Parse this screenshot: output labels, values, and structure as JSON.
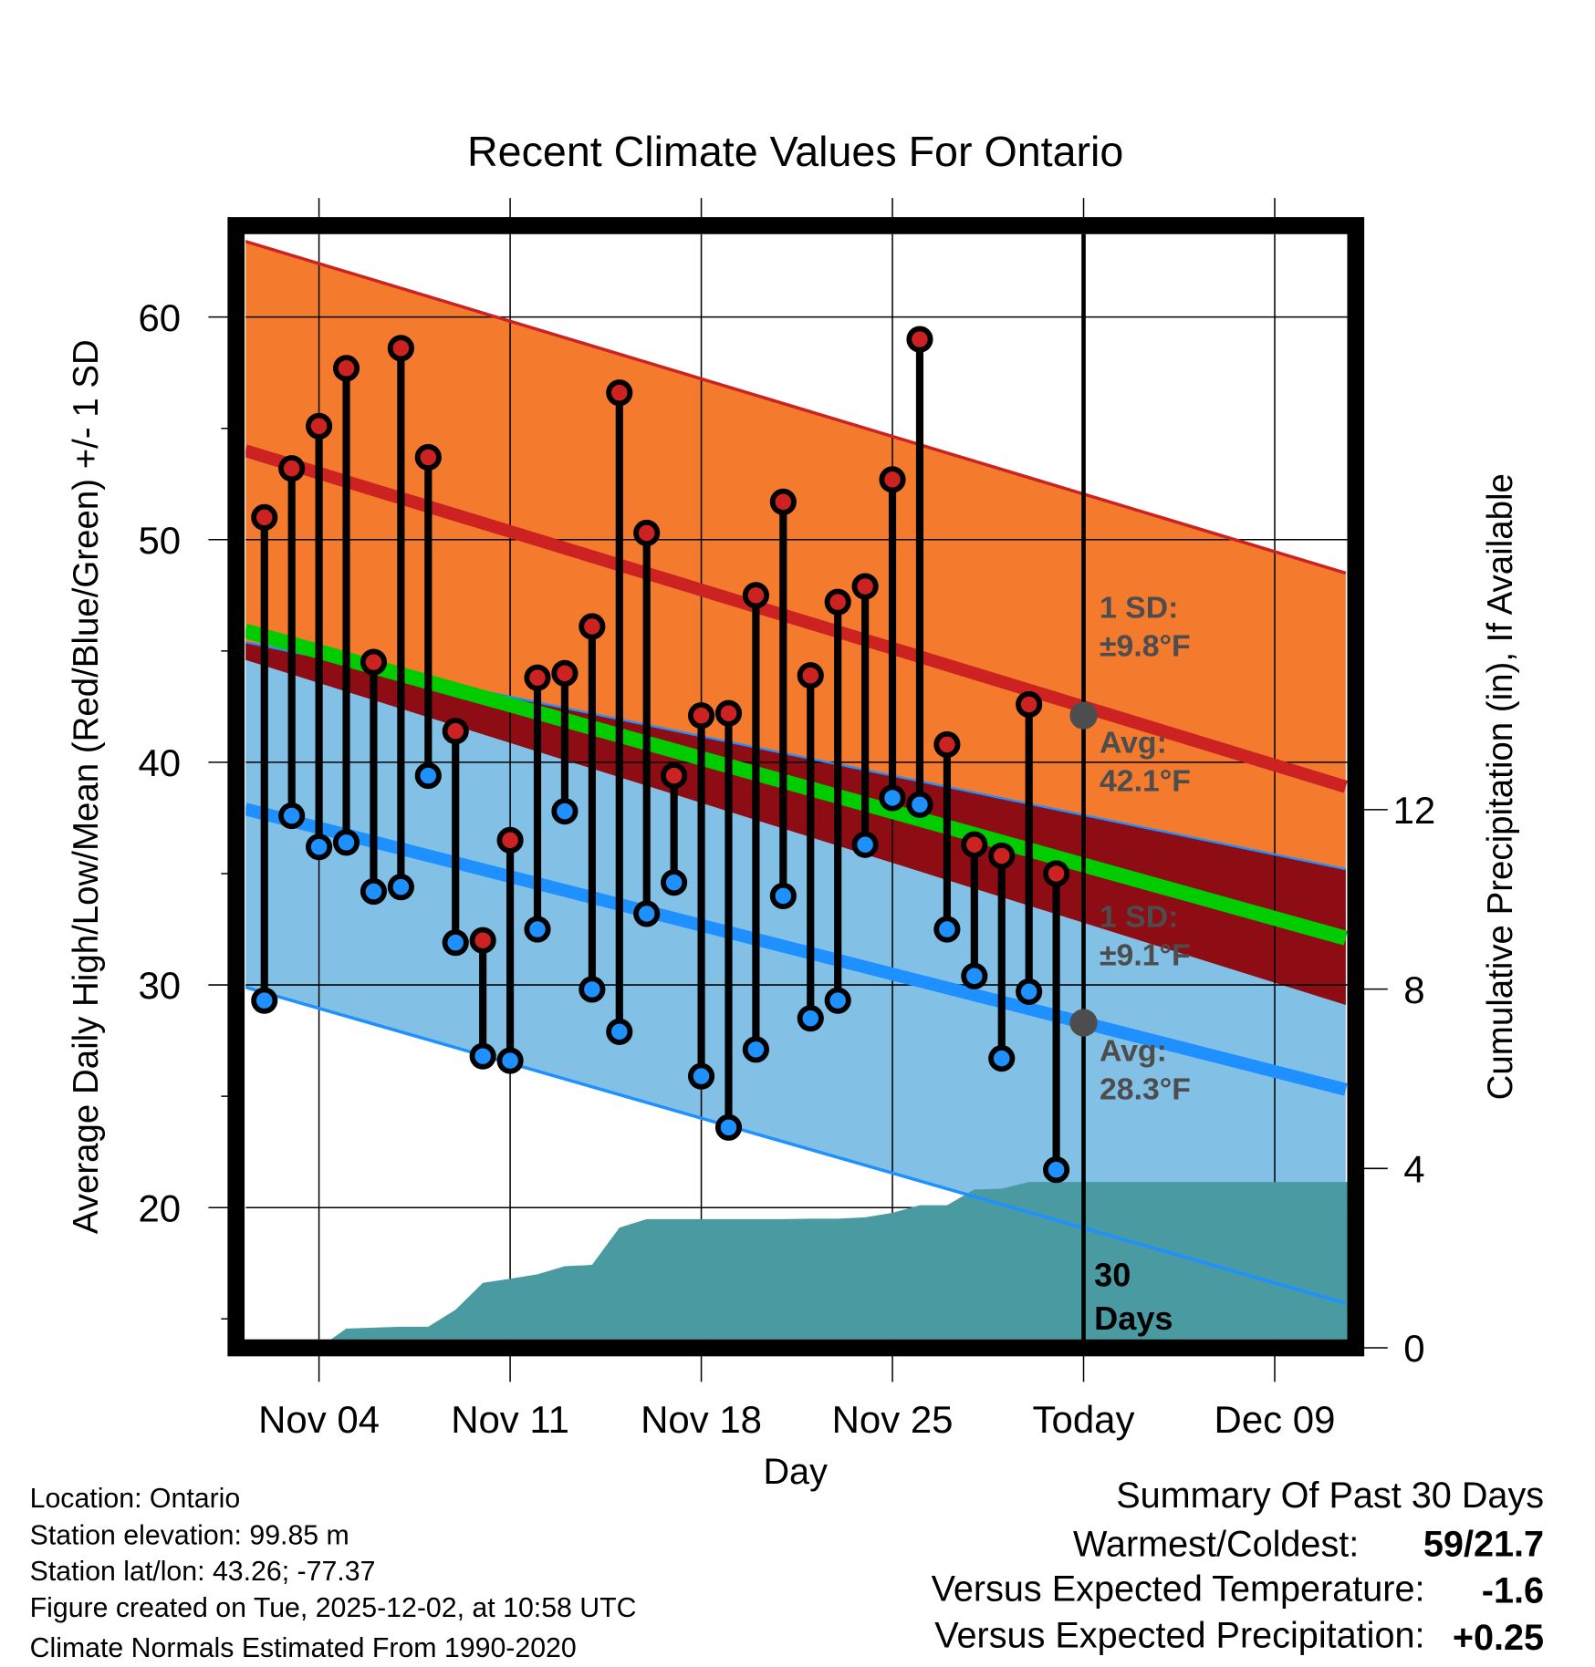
{
  "chart_data": {
    "type": "line",
    "title": "Recent Climate Values For Ontario",
    "xlabel": "Day",
    "ylabel": "Average Daily High/Low/Mean (Red/Blue/Green) +/- 1 SD",
    "y2label": "Cumulative Precipitation (in), If Available",
    "ylim": [
      14.1,
      63.7
    ],
    "y_ticks": [
      "20",
      "30",
      "40",
      "50",
      "60"
    ],
    "y_tick_values": [
      20,
      30,
      40,
      50,
      60
    ],
    "y_minor_ticks": [
      15,
      25,
      35,
      45,
      55
    ],
    "y2_ticks": [
      "0",
      "4",
      "8",
      "12"
    ],
    "y2_tick_values": [
      0,
      4,
      8,
      12
    ],
    "x_day_range": [
      -2.7,
      37.6
    ],
    "x_ticks": [
      {
        "label": "Nov 04",
        "day": 0
      },
      {
        "label": "Nov 11",
        "day": 7
      },
      {
        "label": "Nov 18",
        "day": 14
      },
      {
        "label": "Nov 25",
        "day": 21
      },
      {
        "label": "Today",
        "day": 28
      },
      {
        "label": "Dec 09",
        "day": 35
      }
    ],
    "today_day": 28,
    "observations": {
      "dates": [
        "Nov 02",
        "Nov 03",
        "Nov 04",
        "Nov 05",
        "Nov 06",
        "Nov 07",
        "Nov 08",
        "Nov 09",
        "Nov 10",
        "Nov 11",
        "Nov 12",
        "Nov 13",
        "Nov 14",
        "Nov 15",
        "Nov 16",
        "Nov 17",
        "Nov 18",
        "Nov 19",
        "Nov 20",
        "Nov 21",
        "Nov 22",
        "Nov 23",
        "Nov 24",
        "Nov 25",
        "Nov 26",
        "Nov 27",
        "Nov 28",
        "Nov 29",
        "Nov 30",
        "Dec 01"
      ],
      "start_day": -2,
      "high": [
        51.0,
        53.2,
        55.1,
        57.7,
        44.5,
        58.6,
        53.7,
        41.4,
        32.0,
        36.5,
        43.8,
        44.0,
        46.1,
        56.6,
        50.3,
        39.4,
        42.1,
        42.2,
        47.5,
        51.7,
        43.9,
        47.2,
        47.9,
        52.7,
        59.0,
        40.8,
        36.3,
        35.8,
        42.6,
        35.0
      ],
      "low": [
        29.3,
        37.6,
        36.2,
        36.4,
        34.2,
        34.4,
        39.4,
        31.9,
        26.8,
        26.6,
        32.5,
        37.8,
        29.8,
        27.9,
        33.2,
        34.6,
        25.9,
        23.6,
        27.1,
        34.0,
        28.5,
        29.3,
        36.3,
        38.4,
        38.1,
        32.5,
        30.4,
        26.7,
        29.7,
        21.7
      ]
    },
    "normals": {
      "high_plus_1sd": [
        63.4,
        48.5
      ],
      "high_avg": [
        54.0,
        38.9
      ],
      "high_minus_1sd": [
        44.6,
        29.1
      ],
      "mean_avg": [
        45.9,
        32.1
      ],
      "low_plus_1sd": [
        45.4,
        35.2
      ],
      "low_avg": [
        37.9,
        25.3
      ],
      "low_minus_1sd": [
        29.9,
        15.7
      ]
    },
    "precipitation": {
      "days": [
        -2,
        -1,
        0,
        1,
        2,
        3,
        4,
        5,
        6,
        7,
        8,
        9,
        10,
        11,
        12,
        13,
        14,
        15,
        16,
        17,
        18,
        19,
        20,
        21,
        22,
        23,
        24,
        25,
        26,
        27,
        28,
        37.6
      ],
      "cumulative_in": [
        0,
        0,
        0,
        0.43,
        0.45,
        0.47,
        0.47,
        0.85,
        1.45,
        1.54,
        1.64,
        1.82,
        1.85,
        2.68,
        2.87,
        2.87,
        2.87,
        2.87,
        2.87,
        2.87,
        2.88,
        2.88,
        2.91,
        3.01,
        3.18,
        3.18,
        3.53,
        3.55,
        3.7,
        3.7,
        3.7,
        3.7
      ]
    },
    "annotations": {
      "high_sd_line1": "1 SD:",
      "high_sd_line2": "±9.8°F",
      "high_avg_line1": "Avg:",
      "high_avg_line2": "42.1°F",
      "high_avg_value": 42.1,
      "low_sd_line1": "1 SD:",
      "low_sd_line2": "±9.1°F",
      "low_avg_line1": "Avg:",
      "low_avg_line2": "28.3°F",
      "low_avg_value": 28.3,
      "period_line1": "30",
      "period_line2": "Days"
    },
    "colors": {
      "orange_band": "#F47A2E",
      "high_line": "#CC2222",
      "overlap_band": "#8E0C14",
      "mean_line": "#00CC00",
      "blue_band": "#82C0E6",
      "low_line": "#1E90FF",
      "precip": "#4A9AA2",
      "annotation_dot": "#4d4d4d"
    }
  },
  "footer": {
    "location": "Location: Ontario",
    "elevation": "Station elevation: 99.85 m",
    "latlon": "Station lat/lon: 43.26; -77.37",
    "created": "Figure created on Tue, 2025-12-02, at 10:58 UTC",
    "normals": "Climate Normals Estimated From 1990-2020"
  },
  "summary": {
    "title": "Summary Of Past 30 Days",
    "warmest_label": "Warmest/Coldest:",
    "warmest_value": "59/21.7",
    "temp_label": "Versus Expected Temperature:",
    "temp_value": "-1.6",
    "temp_color": "#1E90FF",
    "precip_label": "Versus Expected Precipitation:",
    "precip_value": "+0.25",
    "precip_color": "#22BB00"
  }
}
